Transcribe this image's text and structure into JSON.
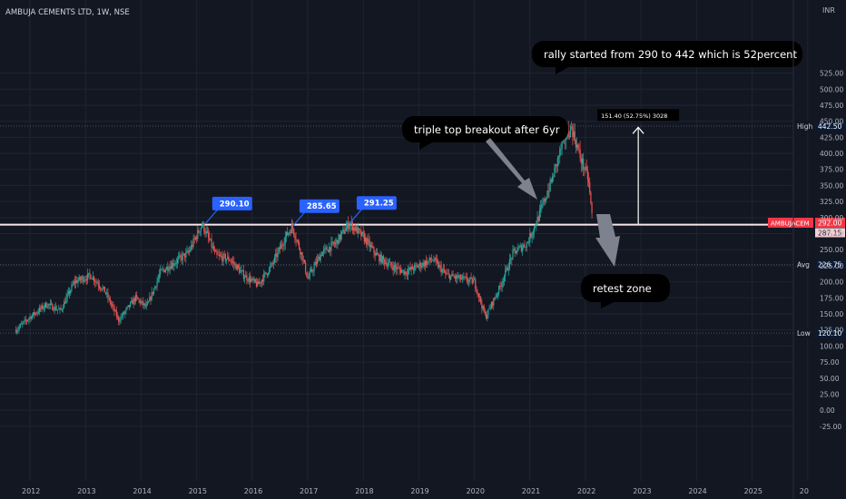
{
  "symbol_title": "AMBUJA CEMENTS LTD, 1W, NSE",
  "currency": "INR",
  "colors": {
    "background": "#131722",
    "grid": "#1f2431",
    "axis_text": "#b2b5be",
    "up": "#26a69a",
    "down": "#ef5350",
    "resistance_line": "#f8e7e9",
    "dotted_level": "#4a5165",
    "label_blue": "#2962ff",
    "label_dark": "#0b1a33",
    "symbol_red": "#f23645",
    "callout_bg": "#000000",
    "callout_text": "#ffffff"
  },
  "chart_data": {
    "type": "candlestick",
    "title": "AMBUJA CEMENTS LTD, 1W, NSE",
    "x_tick_labels": [
      "2012",
      "2013",
      "2014",
      "2015",
      "2016",
      "2017",
      "2018",
      "2019",
      "2020",
      "2021",
      "2022",
      "2023",
      "2024",
      "2025",
      "20"
    ],
    "y_tick_labels": [
      "-25.00",
      "0.00",
      "25.00",
      "50.00",
      "75.00",
      "100.00",
      "125.00",
      "150.00",
      "175.00",
      "200.00",
      "225.00",
      "250.00",
      "275.00",
      "300.00",
      "325.00",
      "350.00",
      "375.00",
      "400.00",
      "425.00",
      "450.00",
      "475.00",
      "500.00",
      "525.00"
    ],
    "ylim": [
      -30,
      540
    ],
    "price_path": [
      {
        "x": 2011.75,
        "y": 125
      },
      {
        "x": 2012.0,
        "y": 145
      },
      {
        "x": 2012.3,
        "y": 165
      },
      {
        "x": 2012.55,
        "y": 155
      },
      {
        "x": 2012.8,
        "y": 200
      },
      {
        "x": 2013.1,
        "y": 210
      },
      {
        "x": 2013.35,
        "y": 185
      },
      {
        "x": 2013.6,
        "y": 140
      },
      {
        "x": 2013.9,
        "y": 175
      },
      {
        "x": 2014.1,
        "y": 160
      },
      {
        "x": 2014.35,
        "y": 215
      },
      {
        "x": 2014.6,
        "y": 230
      },
      {
        "x": 2014.85,
        "y": 245
      },
      {
        "x": 2015.1,
        "y": 290
      },
      {
        "x": 2015.35,
        "y": 240
      },
      {
        "x": 2015.6,
        "y": 235
      },
      {
        "x": 2015.85,
        "y": 210
      },
      {
        "x": 2016.1,
        "y": 195
      },
      {
        "x": 2016.35,
        "y": 225
      },
      {
        "x": 2016.6,
        "y": 270
      },
      {
        "x": 2016.72,
        "y": 286
      },
      {
        "x": 2016.9,
        "y": 240
      },
      {
        "x": 2017.0,
        "y": 205
      },
      {
        "x": 2017.25,
        "y": 245
      },
      {
        "x": 2017.5,
        "y": 260
      },
      {
        "x": 2017.75,
        "y": 291
      },
      {
        "x": 2018.0,
        "y": 270
      },
      {
        "x": 2018.25,
        "y": 240
      },
      {
        "x": 2018.5,
        "y": 225
      },
      {
        "x": 2018.75,
        "y": 215
      },
      {
        "x": 2019.0,
        "y": 225
      },
      {
        "x": 2019.25,
        "y": 235
      },
      {
        "x": 2019.5,
        "y": 210
      },
      {
        "x": 2019.75,
        "y": 205
      },
      {
        "x": 2020.0,
        "y": 200
      },
      {
        "x": 2020.2,
        "y": 145
      },
      {
        "x": 2020.45,
        "y": 190
      },
      {
        "x": 2020.7,
        "y": 245
      },
      {
        "x": 2020.95,
        "y": 260
      },
      {
        "x": 2021.15,
        "y": 300
      },
      {
        "x": 2021.4,
        "y": 360
      },
      {
        "x": 2021.6,
        "y": 420
      },
      {
        "x": 2021.75,
        "y": 440
      },
      {
        "x": 2021.9,
        "y": 395
      },
      {
        "x": 2022.05,
        "y": 360
      },
      {
        "x": 2022.13,
        "y": 292
      }
    ],
    "horizontal_lines": [
      {
        "label": "High",
        "value": 442.5,
        "value_label": "442.50",
        "style": "dotted"
      },
      {
        "label": "Avg",
        "value": 226.75,
        "value_label": "226.75",
        "style": "dotted"
      },
      {
        "label": "Low",
        "value": 120.1,
        "value_label": "120.10",
        "style": "dotted"
      },
      {
        "value": 289,
        "style": "solid-resistance"
      }
    ],
    "last_price": {
      "symbol": "AMBUJACEM",
      "value": 292.0,
      "value_label": "292.00",
      "secondary_label": "287.15"
    },
    "peak_labels": [
      {
        "text": "290.10",
        "x": 2015.15,
        "y": 290
      },
      {
        "text": "285.65",
        "x": 2016.72,
        "y": 286
      },
      {
        "text": "291.25",
        "x": 2017.75,
        "y": 291
      }
    ],
    "measure": {
      "x": 2022.95,
      "from": 290,
      "to": 442,
      "label": "151.40 (52.75%) 3028"
    },
    "annotations": [
      {
        "text": "rally started from 290 to 442 which is 52percent"
      },
      {
        "text": "triple top breakout after 6yr"
      },
      {
        "text": "retest zone"
      }
    ]
  }
}
